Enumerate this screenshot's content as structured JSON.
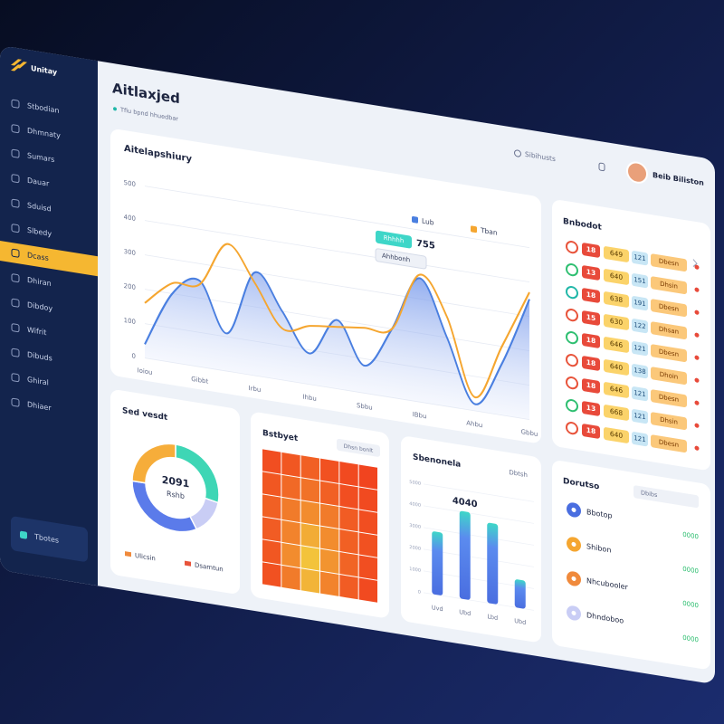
{
  "sidebar": {
    "brand": "Unitay",
    "items": [
      "Stbodian",
      "Dhmnaty",
      "Sumars",
      "Dauar",
      "Sduisd",
      "Slbedy",
      "Dcass",
      "Dhiran",
      "Dibdoy",
      "Wifrit",
      "Dibuds",
      "Ghiral",
      "Dhiaer"
    ],
    "active_item": "Dcass",
    "footer": "Tbotes"
  },
  "header": {
    "title": "Aitlaxjed",
    "breadcrumb": "Tfiu bpnd hhuedbar",
    "search": "Sibihusts",
    "user": "Beib Biliston"
  },
  "line_chart": {
    "type": "line",
    "title": "Aitelapshiury",
    "categories": [
      "Ioiou",
      null,
      "Gibbt",
      null,
      "Irbu",
      null,
      "Ihbu",
      null,
      "Sbbu",
      null,
      "IBbu",
      null,
      "Ahbu",
      null,
      "Gbbu"
    ],
    "series": [
      {
        "name": "Lub",
        "color": "#4a7fe0",
        "values": [
          40,
          200,
          250,
          110,
          300,
          200,
          90,
          200,
          80,
          200,
          360,
          200,
          20,
          150,
          350
        ]
      },
      {
        "name": "Tban",
        "color": "#f5a630",
        "values": [
          160,
          230,
          240,
          370,
          270,
          150,
          170,
          180,
          190,
          200,
          370,
          260,
          40,
          200,
          370
        ]
      }
    ],
    "ylim": [
      0,
      500
    ],
    "yticks": [
      0,
      100,
      200,
      300,
      400,
      500
    ],
    "callout_label": "Rhhhh",
    "callout": "755",
    "tooltip": "Ahhbonh"
  },
  "table": {
    "title": "Bnbodot",
    "icon_colors": [
      "#e8533a",
      "#2fbf71",
      "#20b7a8",
      "#e8533a",
      "#2fbf71",
      "#e8533a",
      "#e8533a",
      "#2fbf71",
      "#e8533a"
    ],
    "rows": [
      [
        "18",
        "649",
        "121",
        "Dbesn"
      ],
      [
        "13",
        "640",
        "151",
        "Dhsin"
      ],
      [
        "18",
        "638",
        "191",
        "Dbesn"
      ],
      [
        "15",
        "630",
        "122",
        "Dhsan"
      ],
      [
        "18",
        "646",
        "121",
        "Dbesn"
      ],
      [
        "18",
        "640",
        "138",
        "Dhoin"
      ],
      [
        "18",
        "646",
        "121",
        "Dbesn"
      ],
      [
        "13",
        "668",
        "121",
        "Dhsin"
      ],
      [
        "18",
        "640",
        "121",
        "Dbesn"
      ]
    ]
  },
  "donut": {
    "type": "pie",
    "title": "Sed vesdt",
    "center": "2091",
    "center_label": "Rshb",
    "segments": [
      {
        "value": 28,
        "color": "#3ed6b5"
      },
      {
        "value": 14,
        "color": "#c9cdf5"
      },
      {
        "value": 33,
        "color": "#5b7bea"
      },
      {
        "value": 25,
        "color": "#f6ad3a"
      }
    ],
    "legend": [
      {
        "name": "Ulicsin",
        "color": "#f08a3c"
      },
      {
        "name": "Dsamtun",
        "color": "#e8533a"
      }
    ]
  },
  "heatmap": {
    "title": "Bstbyet",
    "button": "Dhsn bonlt",
    "cells": [
      [
        20,
        25,
        30,
        22,
        18,
        15
      ],
      [
        25,
        35,
        40,
        30,
        20,
        18
      ],
      [
        30,
        45,
        55,
        45,
        28,
        20
      ],
      [
        28,
        50,
        75,
        55,
        30,
        22
      ],
      [
        25,
        55,
        90,
        60,
        32,
        20
      ],
      [
        22,
        45,
        80,
        50,
        28,
        18
      ]
    ]
  },
  "bars": {
    "type": "bar",
    "title": "Sbenonela",
    "dropdown": "Dbtsh",
    "categories": [
      "Uvd",
      "Ubd",
      "Lbd",
      "Ubd"
    ],
    "values": [
      2900,
      4040,
      3700,
      1300
    ],
    "ylim": [
      0,
      5000
    ],
    "yticks": [
      0,
      1000,
      2000,
      3000,
      4000,
      5000
    ]
  },
  "list": {
    "title": "Dorutso",
    "dropdown": "Dbibs",
    "items": [
      {
        "name": "Bbotop",
        "value": "0000",
        "color": "#4a6ee0"
      },
      {
        "name": "Shibon",
        "value": "0000",
        "color": "#f5a630"
      },
      {
        "name": "Nhcubooler",
        "value": "0000",
        "color": "#f08a3c"
      },
      {
        "name": "Dhndoboo",
        "value": "0000",
        "color": "#c9cdf5"
      }
    ]
  }
}
